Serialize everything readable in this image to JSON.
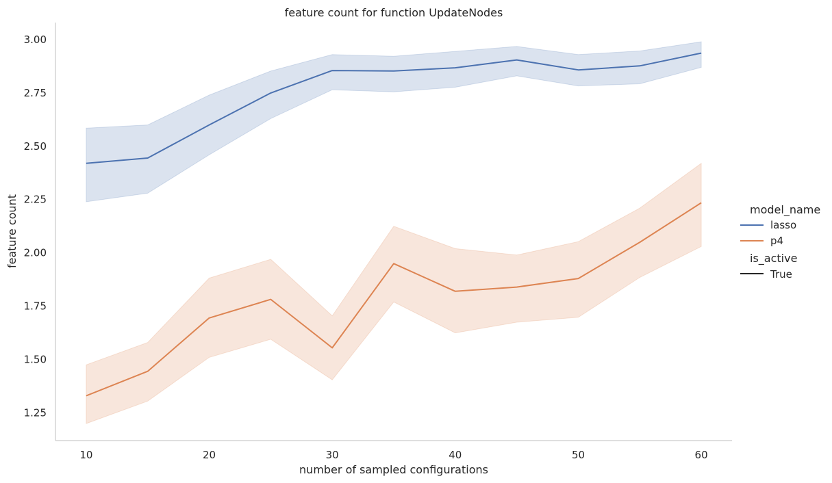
{
  "chart_data": {
    "type": "line",
    "title": "feature count for function UpdateNodes",
    "xlabel": "number of sampled configurations",
    "ylabel": "feature count",
    "x": [
      10,
      15,
      20,
      25,
      30,
      35,
      40,
      45,
      50,
      55,
      60
    ],
    "xticks": [
      "10",
      "20",
      "30",
      "40",
      "50",
      "60"
    ],
    "yticks": [
      "1.25",
      "1.50",
      "1.75",
      "2.00",
      "2.25",
      "2.50",
      "2.75",
      "3.00"
    ],
    "xlim": [
      7.5,
      62.5
    ],
    "ylim": [
      1.12,
      3.08
    ],
    "grid": false,
    "legend_placement": "right",
    "legend": {
      "hue_title": "model_name",
      "style_title": "is_active",
      "style_entry": "True"
    },
    "series": [
      {
        "name": "lasso",
        "color": "#4c72b0",
        "values": [
          2.42,
          2.445,
          2.6,
          2.75,
          2.855,
          2.853,
          2.868,
          2.905,
          2.858,
          2.877,
          2.937
        ],
        "ci_low": [
          2.24,
          2.28,
          2.46,
          2.63,
          2.765,
          2.755,
          2.777,
          2.83,
          2.783,
          2.793,
          2.87
        ],
        "ci_high": [
          2.585,
          2.6,
          2.74,
          2.853,
          2.93,
          2.922,
          2.945,
          2.968,
          2.93,
          2.947,
          2.99
        ]
      },
      {
        "name": "p4",
        "color": "#dd8452",
        "values": [
          1.33,
          1.445,
          1.695,
          1.782,
          1.555,
          1.95,
          1.82,
          1.84,
          1.88,
          2.05,
          2.235
        ],
        "ci_low": [
          1.2,
          1.305,
          1.51,
          1.595,
          1.405,
          1.77,
          1.625,
          1.675,
          1.698,
          1.885,
          2.03
        ],
        "ci_high": [
          1.475,
          1.58,
          1.882,
          1.97,
          1.705,
          2.125,
          2.02,
          1.99,
          2.053,
          2.21,
          2.42
        ]
      }
    ]
  }
}
